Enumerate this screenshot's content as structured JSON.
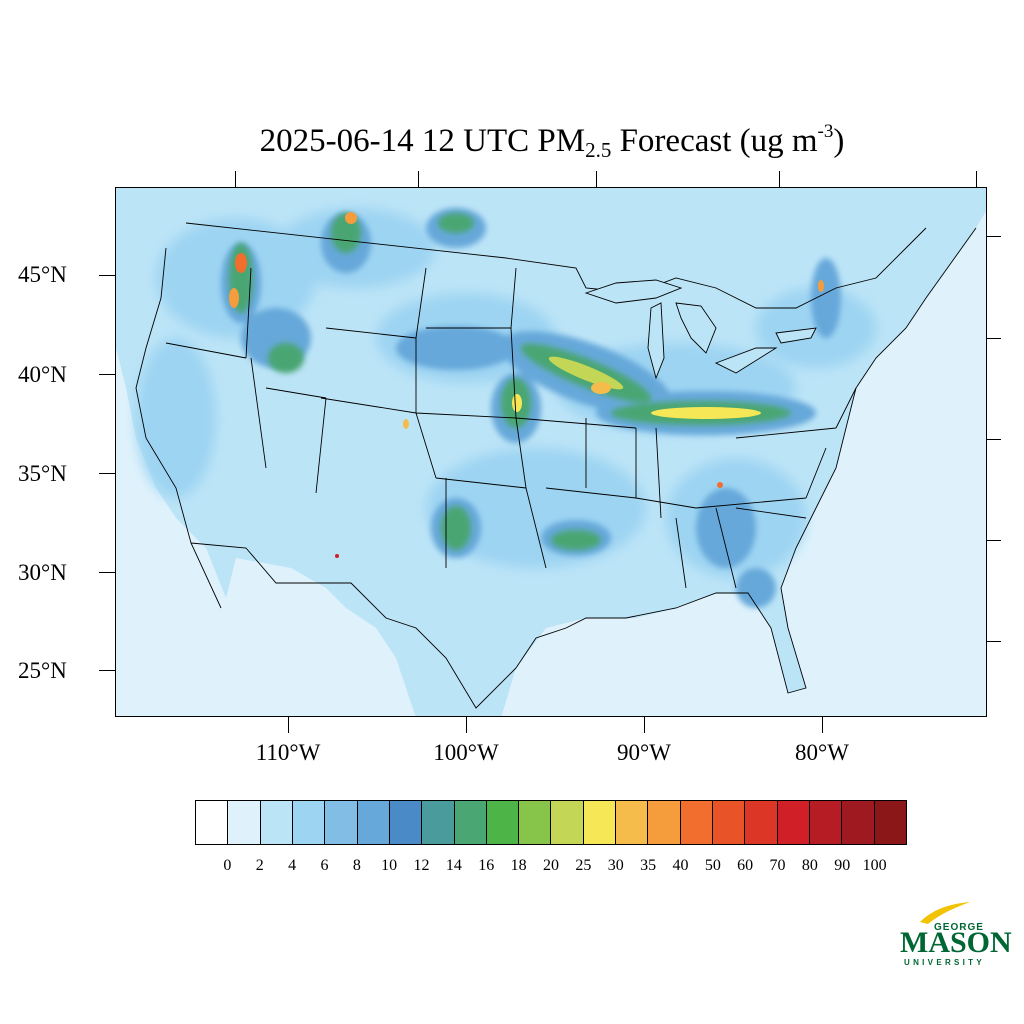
{
  "title": {
    "prefix": "2025-06-14 12 UTC PM",
    "subscript": "2.5",
    "middle": " Forecast (ug m",
    "superscript": "-3",
    "suffix": ")"
  },
  "lat_labels": [
    "45°N",
    "40°N",
    "35°N",
    "30°N",
    "25°N"
  ],
  "lon_labels": [
    "110°W",
    "100°W",
    "90°W",
    "80°W"
  ],
  "colorbar": {
    "levels": [
      "0",
      "2",
      "4",
      "6",
      "8",
      "10",
      "12",
      "14",
      "16",
      "18",
      "20",
      "25",
      "30",
      "35",
      "40",
      "50",
      "60",
      "70",
      "80",
      "90",
      "100"
    ],
    "colors": [
      "#ffffff",
      "#dff2fc",
      "#bce4f7",
      "#9dd4f2",
      "#81bde5",
      "#66a8da",
      "#4a8ac7",
      "#4a9b9c",
      "#4aa672",
      "#4db548",
      "#86c44a",
      "#c3d656",
      "#f5e756",
      "#f5bc4c",
      "#f59c3d",
      "#f26e2e",
      "#e85328",
      "#dc3726",
      "#d01f27",
      "#b51c24",
      "#9f1a20",
      "#8b1719"
    ]
  },
  "colors": {
    "ocean": "#dff2fc",
    "land_low": "#bce4f7",
    "border": "#000000",
    "logo_green": "#006633",
    "logo_gold": "#f2c300"
  },
  "logo": {
    "line1": "GEORGE",
    "line2": "MASON",
    "line3": "UNIVERSITY"
  }
}
